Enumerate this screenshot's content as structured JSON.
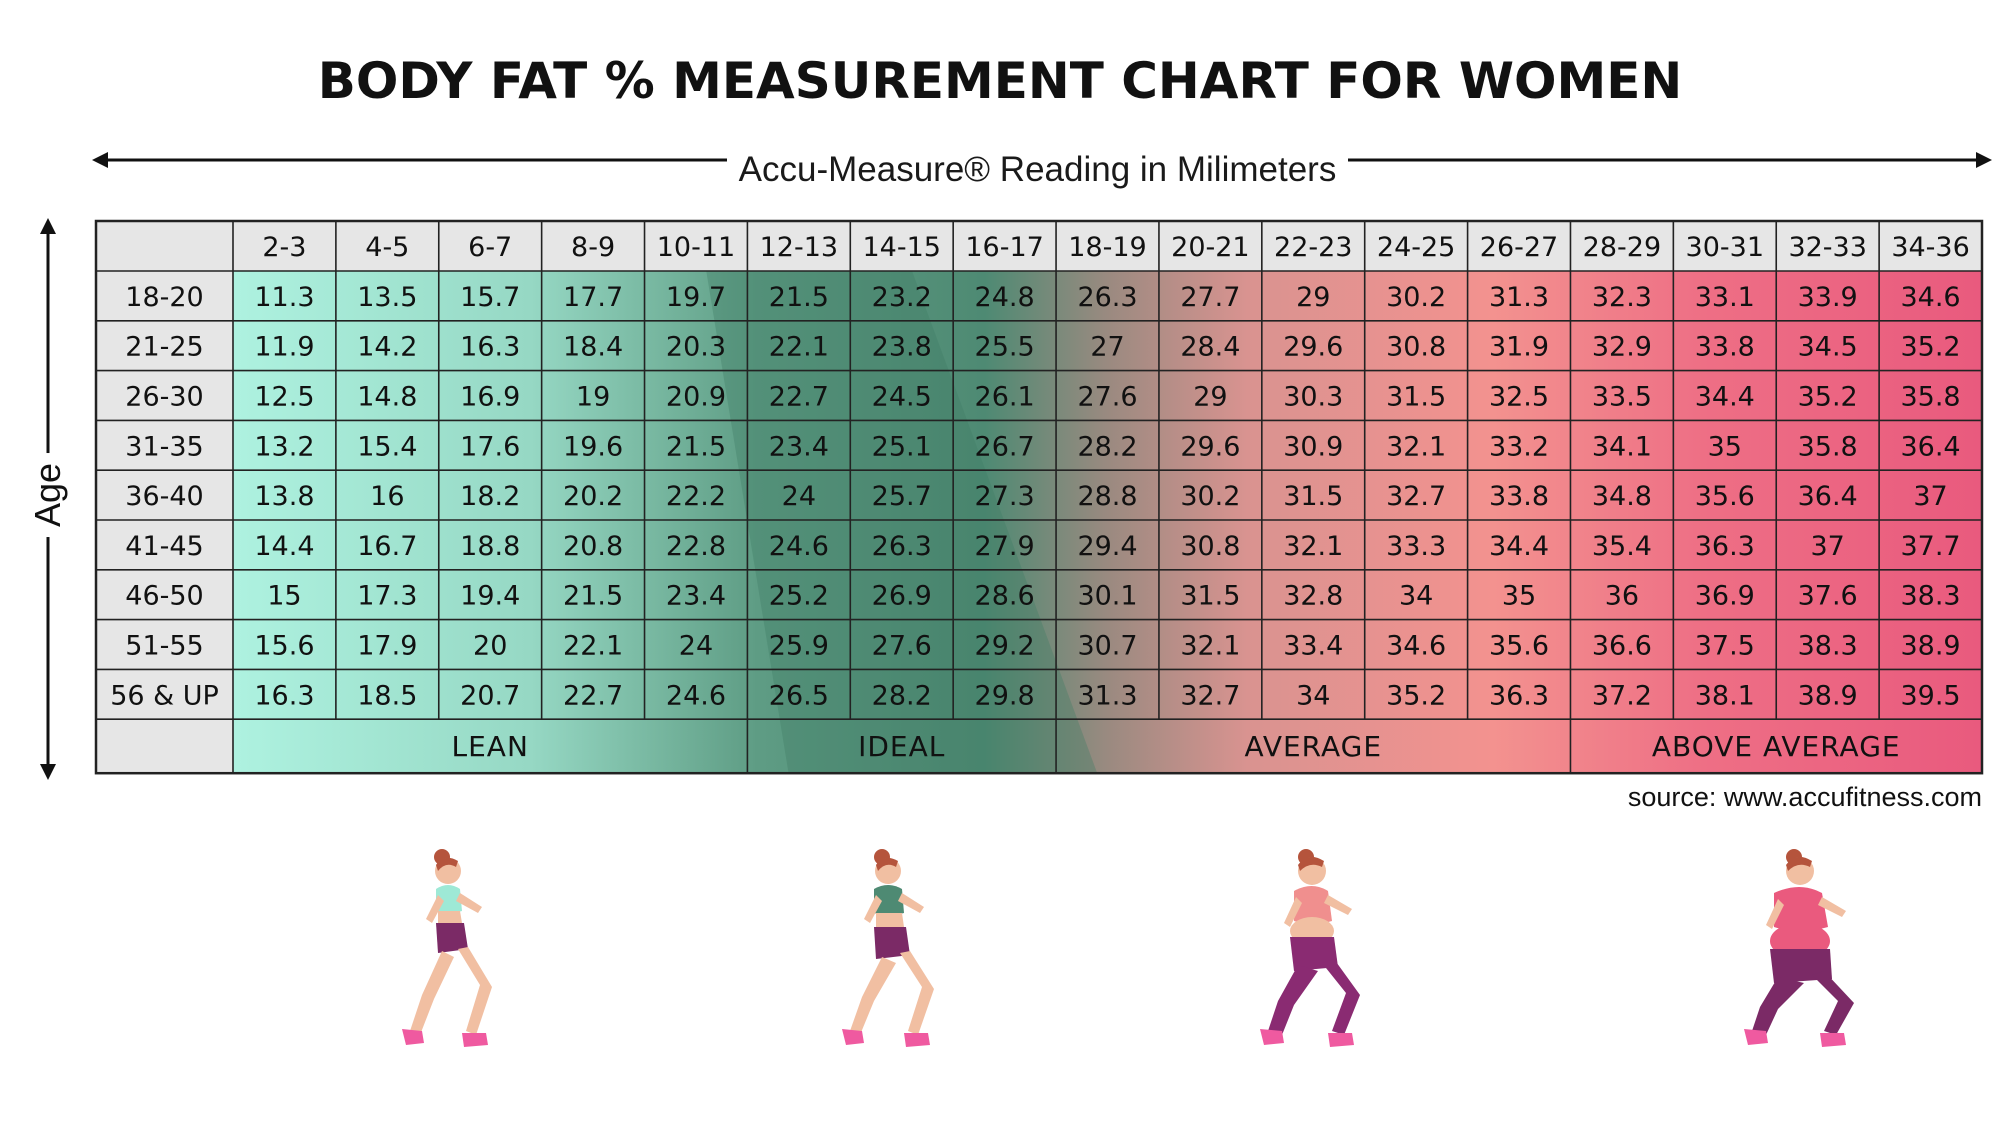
{
  "title": "BODY FAT % MEASUREMENT CHART FOR WOMEN",
  "x_axis_label": "Accu-Measure® Reading in Milimeters",
  "y_axis_label": "Age",
  "source": "source: www.accufitness.com",
  "colors": {
    "lean": "#aeeedd",
    "ideal": "#4e8a73",
    "average": "#f08f8e",
    "above_average": "#ea5a7e",
    "header_bg": "#e6e6e6",
    "grid": "#222222"
  },
  "chart_data": {
    "type": "table",
    "columns": [
      "2-3",
      "4-5",
      "6-7",
      "8-9",
      "10-11",
      "12-13",
      "14-15",
      "16-17",
      "18-19",
      "20-21",
      "22-23",
      "24-25",
      "26-27",
      "28-29",
      "30-31",
      "32-33",
      "34-36"
    ],
    "rows": [
      {
        "label": "18-20",
        "values": [
          11.3,
          13.5,
          15.7,
          17.7,
          19.7,
          21.5,
          23.2,
          24.8,
          26.3,
          27.7,
          29,
          30.2,
          31.3,
          32.3,
          33.1,
          33.9,
          34.6
        ]
      },
      {
        "label": "21-25",
        "values": [
          11.9,
          14.2,
          16.3,
          18.4,
          20.3,
          22.1,
          23.8,
          25.5,
          27,
          28.4,
          29.6,
          30.8,
          31.9,
          32.9,
          33.8,
          34.5,
          35.2
        ]
      },
      {
        "label": "26-30",
        "values": [
          12.5,
          14.8,
          16.9,
          19,
          20.9,
          22.7,
          24.5,
          26.1,
          27.6,
          29,
          30.3,
          31.5,
          32.5,
          33.5,
          34.4,
          35.2,
          35.8
        ]
      },
      {
        "label": "31-35",
        "values": [
          13.2,
          15.4,
          17.6,
          19.6,
          21.5,
          23.4,
          25.1,
          26.7,
          28.2,
          29.6,
          30.9,
          32.1,
          33.2,
          34.1,
          35,
          35.8,
          36.4
        ]
      },
      {
        "label": "36-40",
        "values": [
          13.8,
          16,
          18.2,
          20.2,
          22.2,
          24,
          25.7,
          27.3,
          28.8,
          30.2,
          31.5,
          32.7,
          33.8,
          34.8,
          35.6,
          36.4,
          37
        ]
      },
      {
        "label": "41-45",
        "values": [
          14.4,
          16.7,
          18.8,
          20.8,
          22.8,
          24.6,
          26.3,
          27.9,
          29.4,
          30.8,
          32.1,
          33.3,
          34.4,
          35.4,
          36.3,
          37,
          37.7
        ]
      },
      {
        "label": "46-50",
        "values": [
          15,
          17.3,
          19.4,
          21.5,
          23.4,
          25.2,
          26.9,
          28.6,
          30.1,
          31.5,
          32.8,
          34,
          35,
          36,
          36.9,
          37.6,
          38.3
        ]
      },
      {
        "label": "51-55",
        "values": [
          15.6,
          17.9,
          20,
          22.1,
          24,
          25.9,
          27.6,
          29.2,
          30.7,
          32.1,
          33.4,
          34.6,
          35.6,
          36.6,
          37.5,
          38.3,
          38.9
        ]
      },
      {
        "label": "56 & UP",
        "values": [
          16.3,
          18.5,
          20.7,
          22.7,
          24.6,
          26.5,
          28.2,
          29.8,
          31.3,
          32.7,
          34,
          35.2,
          36.3,
          37.2,
          38.1,
          38.9,
          39.5
        ]
      }
    ],
    "categories": [
      {
        "label": "LEAN",
        "from_column": "2-3",
        "to_column": "10-11"
      },
      {
        "label": "IDEAL",
        "from_column": "12-13",
        "to_column": "16-17"
      },
      {
        "label": "AVERAGE",
        "from_column": "18-19",
        "to_column": "26-27"
      },
      {
        "label": "ABOVE AVERAGE",
        "from_column": "28-29",
        "to_column": "34-36"
      }
    ]
  }
}
